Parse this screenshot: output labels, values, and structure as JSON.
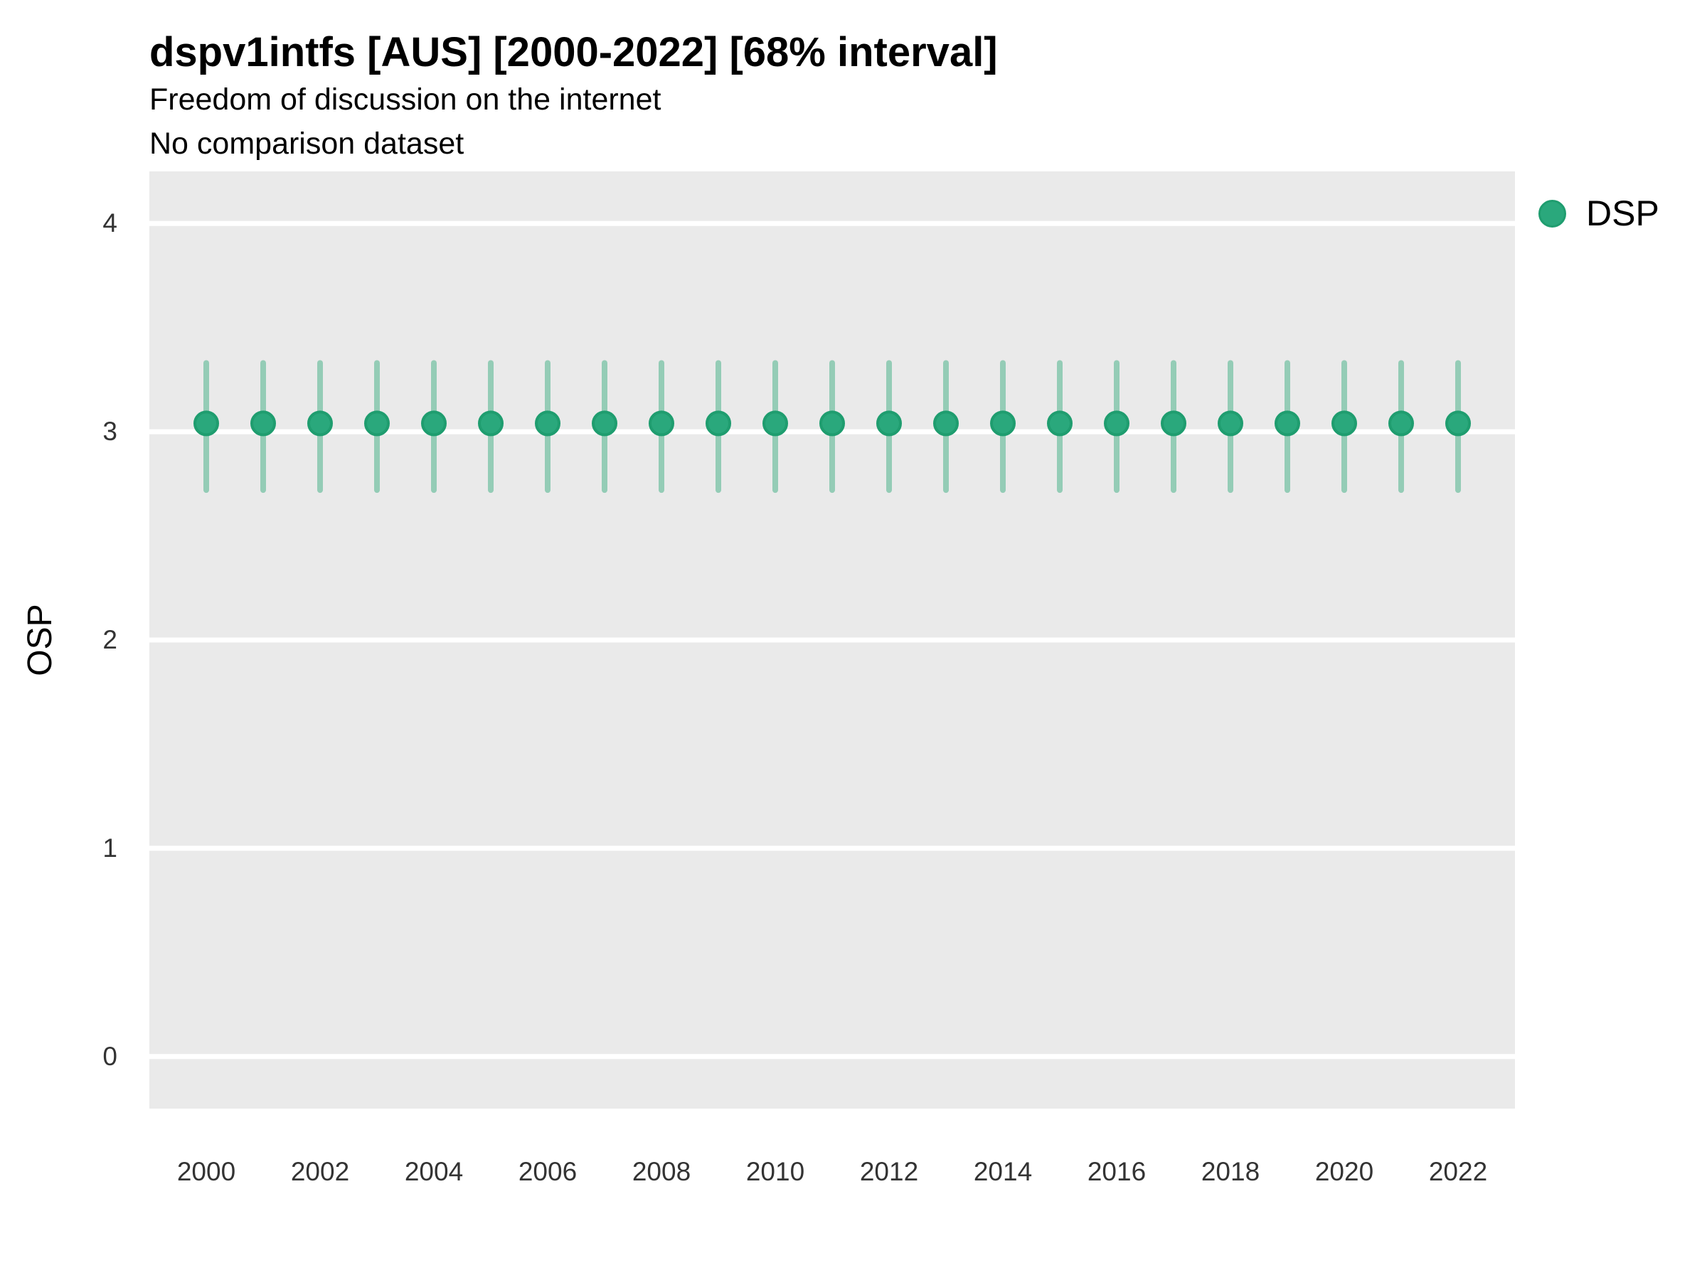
{
  "figure": {
    "title": "dspv1intfs [AUS] [2000-2022] [68% interval]",
    "subtitle": "Freedom of discussion on the internet",
    "note": "No comparison dataset",
    "ylabel": "OSP",
    "legend": {
      "label": "DSP"
    }
  },
  "colors": {
    "point_fill": "#2aa87c",
    "point_stroke": "#1f9d6f",
    "interval_bar": "#94ccb6",
    "panel_background": "#eaeaea",
    "gridline": "#ffffff",
    "tick_text": "#333333",
    "title_text": "#000000"
  },
  "chart_data": {
    "type": "scatter",
    "subtype": "pointrange",
    "title": "dspv1intfs [AUS] [2000-2022] [68% interval]",
    "subtitle": "Freedom of discussion on the internet",
    "note": "No comparison dataset",
    "interval": "68%",
    "xlabel": "",
    "ylabel": "OSP",
    "legend_position": "right-top",
    "grid": "horizontal-white-on-grey",
    "xlim": [
      1999,
      2023
    ],
    "ylim": [
      -0.25,
      4.25
    ],
    "y_ticks": [
      0,
      1,
      2,
      3,
      4
    ],
    "x_ticks": [
      2000,
      2002,
      2004,
      2006,
      2008,
      2010,
      2012,
      2014,
      2016,
      2018,
      2020,
      2022
    ],
    "x": [
      2000,
      2001,
      2002,
      2003,
      2004,
      2005,
      2006,
      2007,
      2008,
      2009,
      2010,
      2011,
      2012,
      2013,
      2014,
      2015,
      2016,
      2017,
      2018,
      2019,
      2020,
      2021,
      2022
    ],
    "series": [
      {
        "name": "DSP",
        "values": [
          3.04,
          3.04,
          3.04,
          3.04,
          3.04,
          3.04,
          3.04,
          3.04,
          3.04,
          3.04,
          3.04,
          3.04,
          3.04,
          3.04,
          3.04,
          3.04,
          3.04,
          3.04,
          3.04,
          3.04,
          3.04,
          3.04,
          3.04
        ],
        "interval_low": [
          2.72,
          2.72,
          2.72,
          2.72,
          2.72,
          2.72,
          2.72,
          2.72,
          2.72,
          2.72,
          2.72,
          2.72,
          2.72,
          2.72,
          2.72,
          2.72,
          2.72,
          2.72,
          2.72,
          2.72,
          2.72,
          2.72,
          2.72
        ],
        "interval_high": [
          3.33,
          3.33,
          3.33,
          3.33,
          3.33,
          3.33,
          3.33,
          3.33,
          3.33,
          3.33,
          3.33,
          3.33,
          3.33,
          3.33,
          3.33,
          3.33,
          3.33,
          3.33,
          3.33,
          3.33,
          3.33,
          3.33,
          3.33
        ]
      }
    ]
  }
}
